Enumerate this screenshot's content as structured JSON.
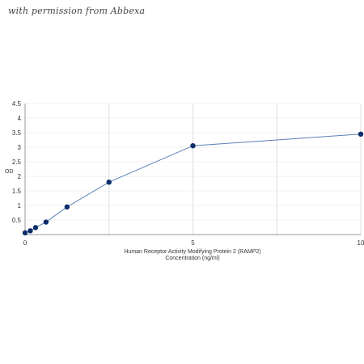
{
  "watermark": "with permission from Abbexa",
  "chart_data": {
    "type": "scatter",
    "title": "",
    "xlabel": [
      "Human Receptor Activity Modifying Protein 2 (RAMP2)",
      "Concentration (ng/ml)"
    ],
    "ylabel": "OD",
    "xlim": [
      0,
      10
    ],
    "ylim": [
      0,
      4.5
    ],
    "xticks": [
      0,
      5,
      10
    ],
    "yticks": [
      0.5,
      1,
      1.5,
      2,
      2.5,
      3,
      3.5,
      4,
      4.5
    ],
    "grid": true,
    "series": [
      {
        "x": [
          0,
          0.156,
          0.312,
          0.625,
          1.25,
          2.5,
          5,
          10
        ],
        "y": [
          0.06,
          0.13,
          0.24,
          0.43,
          0.95,
          1.8,
          3.05,
          3.45
        ],
        "color": "#0d2d6b",
        "line_color": "#5a7fb5"
      }
    ]
  }
}
